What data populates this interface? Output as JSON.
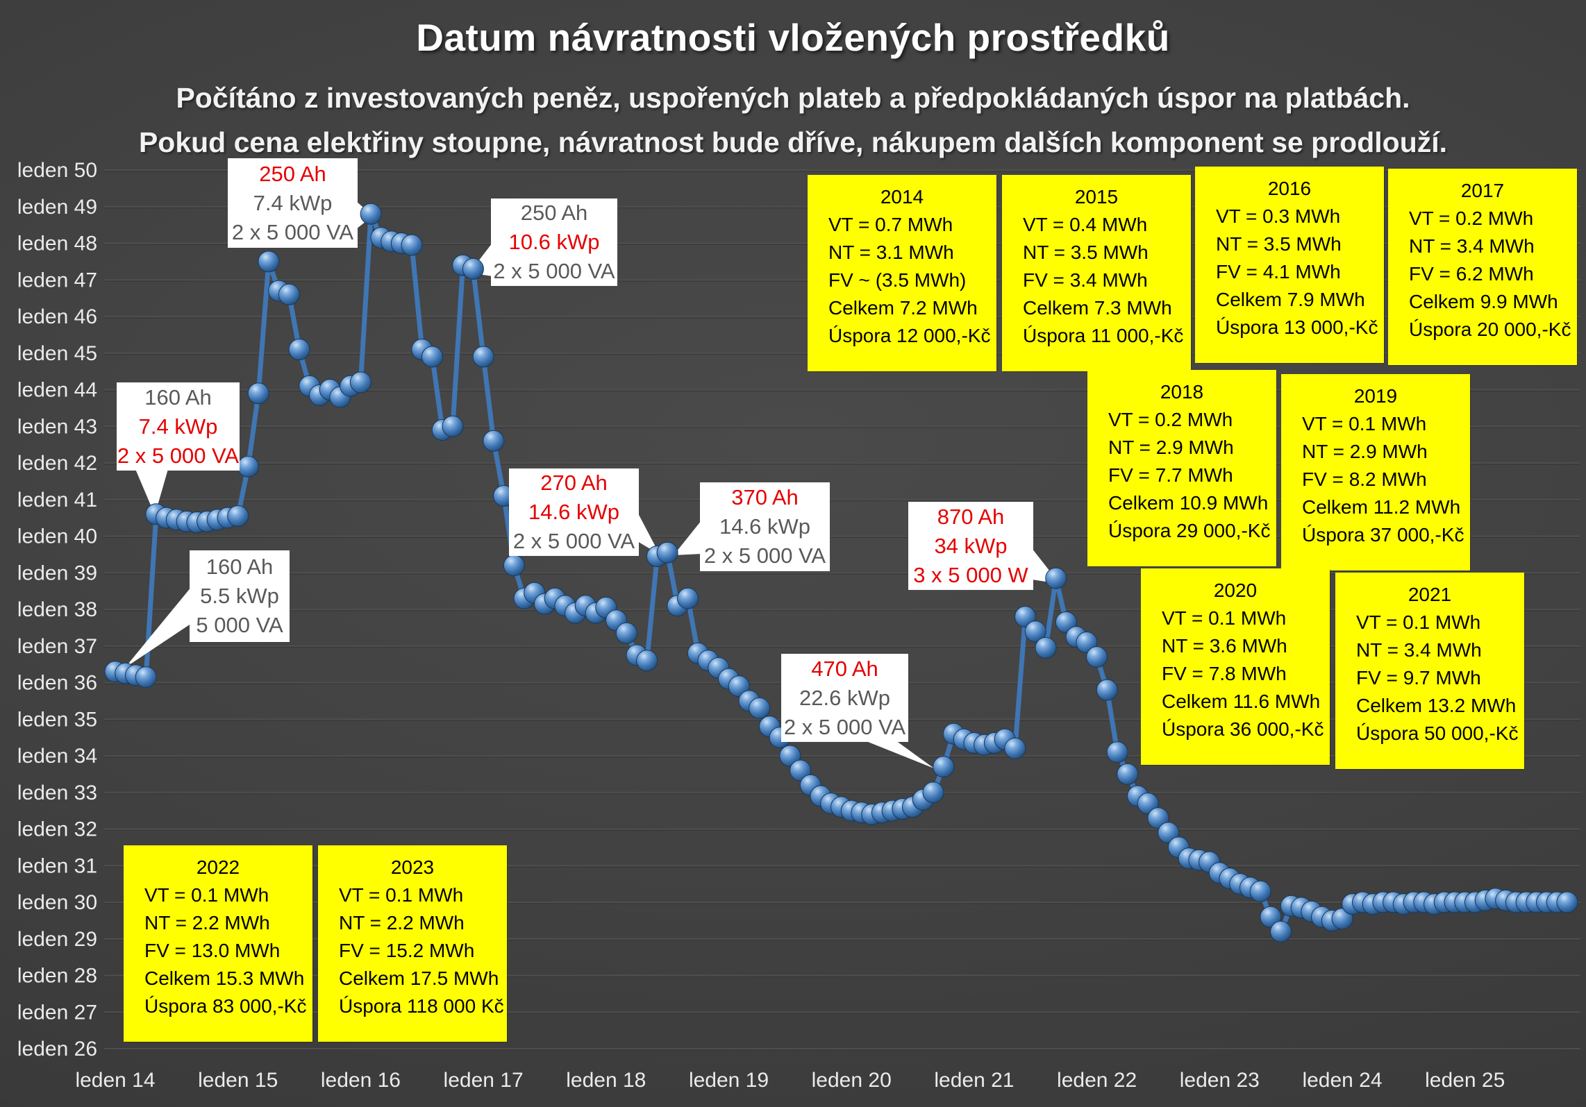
{
  "title": "Datum návratnosti vložených prostředků",
  "subtitle_line1": "Počítáno z investovaných peněz, uspořených plateb a předpokládaných úspor na platbách.",
  "subtitle_line2": "Pokud cena elektřiny stoupne, návratnost bude dříve, nákupem dalších komponent se prodlouží.",
  "colors": {
    "background": "#3f3f3f",
    "gridline": "#4e4e4e",
    "gridline_shadow": "#343434",
    "axis_label": "#ebebeb",
    "line": "#3f76b4",
    "marker_dark": "#1d4976",
    "marker_light": "#cfe3f7",
    "year_box_bg": "#ffff00",
    "year_box_text": "#000000",
    "callout_bg": "#ffffff",
    "callout_red": "#e60000",
    "callout_gray": "#595959"
  },
  "chart_data": {
    "type": "line",
    "title": "Datum návratnosti vložených prostředků",
    "xlabel": "",
    "ylabel": "",
    "grid": true,
    "legend": "none",
    "x_tick_labels": [
      "leden 14",
      "leden 15",
      "leden 16",
      "leden 17",
      "leden 18",
      "leden 19",
      "leden 20",
      "leden 21",
      "leden 22",
      "leden 23",
      "leden 24",
      "leden 25"
    ],
    "y_tick_labels": [
      "leden 50",
      "leden 49",
      "leden 48",
      "leden 47",
      "leden 46",
      "leden 45",
      "leden 44",
      "leden 43",
      "leden 42",
      "leden 41",
      "leden 40",
      "leden 39",
      "leden 38",
      "leden 37",
      "leden 36",
      "leden 35",
      "leden 34",
      "leden 33",
      "leden 32",
      "leden 31",
      "leden 30",
      "leden 29",
      "leden 28",
      "leden 27",
      "leden 26"
    ],
    "y_axis": {
      "min": 26,
      "max": 50,
      "unit": "leden (rok)"
    },
    "x_axis": {
      "min": 2014,
      "max": 2025,
      "unit": "leden (rok)"
    },
    "series": [
      {
        "name": "datum návratnosti",
        "points": [
          [
            "2014-01",
            36.3
          ],
          [
            "2014-02",
            36.25
          ],
          [
            "2014-03",
            36.2
          ],
          [
            "2014-04",
            36.15
          ],
          [
            "2014-05",
            40.6
          ],
          [
            "2014-06",
            40.5
          ],
          [
            "2014-07",
            40.45
          ],
          [
            "2014-08",
            40.4
          ],
          [
            "2014-09",
            40.38
          ],
          [
            "2014-10",
            40.4
          ],
          [
            "2014-11",
            40.45
          ],
          [
            "2014-12",
            40.5
          ],
          [
            "2015-01",
            40.55
          ],
          [
            "2015-02",
            41.9
          ],
          [
            "2015-03",
            43.9
          ],
          [
            "2015-04",
            47.5
          ],
          [
            "2015-05",
            46.7
          ],
          [
            "2015-06",
            46.6
          ],
          [
            "2015-07",
            45.1
          ],
          [
            "2015-08",
            44.1
          ],
          [
            "2015-09",
            43.85
          ],
          [
            "2015-10",
            44.0
          ],
          [
            "2015-11",
            43.8
          ],
          [
            "2015-12",
            44.1
          ],
          [
            "2016-01",
            44.2
          ],
          [
            "2016-02",
            48.8
          ],
          [
            "2016-03",
            48.15
          ],
          [
            "2016-04",
            48.05
          ],
          [
            "2016-05",
            48.0
          ],
          [
            "2016-06",
            47.95
          ],
          [
            "2016-07",
            45.1
          ],
          [
            "2016-08",
            44.9
          ],
          [
            "2016-09",
            42.9
          ],
          [
            "2016-10",
            43.0
          ],
          [
            "2016-11",
            47.4
          ],
          [
            "2016-12",
            47.3
          ],
          [
            "2017-01",
            44.9
          ],
          [
            "2017-02",
            42.6
          ],
          [
            "2017-03",
            41.1
          ],
          [
            "2017-04",
            39.2
          ],
          [
            "2017-05",
            38.3
          ],
          [
            "2017-06",
            38.45
          ],
          [
            "2017-07",
            38.15
          ],
          [
            "2017-08",
            38.3
          ],
          [
            "2017-09",
            38.1
          ],
          [
            "2017-10",
            37.9
          ],
          [
            "2017-11",
            38.1
          ],
          [
            "2017-12",
            37.9
          ],
          [
            "2018-01",
            38.05
          ],
          [
            "2018-02",
            37.7
          ],
          [
            "2018-03",
            37.35
          ],
          [
            "2018-04",
            36.75
          ],
          [
            "2018-05",
            36.6
          ],
          [
            "2018-06",
            39.45
          ],
          [
            "2018-07",
            39.55
          ],
          [
            "2018-08",
            38.1
          ],
          [
            "2018-09",
            38.3
          ],
          [
            "2018-10",
            36.8
          ],
          [
            "2018-11",
            36.6
          ],
          [
            "2018-12",
            36.4
          ],
          [
            "2019-01",
            36.1
          ],
          [
            "2019-02",
            35.9
          ],
          [
            "2019-03",
            35.5
          ],
          [
            "2019-04",
            35.3
          ],
          [
            "2019-05",
            34.8
          ],
          [
            "2019-06",
            34.5
          ],
          [
            "2019-07",
            34.0
          ],
          [
            "2019-08",
            33.6
          ],
          [
            "2019-09",
            33.2
          ],
          [
            "2019-10",
            32.9
          ],
          [
            "2019-11",
            32.7
          ],
          [
            "2019-12",
            32.6
          ],
          [
            "2020-01",
            32.5
          ],
          [
            "2020-02",
            32.45
          ],
          [
            "2020-03",
            32.4
          ],
          [
            "2020-04",
            32.45
          ],
          [
            "2020-05",
            32.5
          ],
          [
            "2020-06",
            32.55
          ],
          [
            "2020-07",
            32.6
          ],
          [
            "2020-08",
            32.8
          ],
          [
            "2020-09",
            33.0
          ],
          [
            "2020-10",
            33.7
          ],
          [
            "2020-11",
            34.6
          ],
          [
            "2020-12",
            34.45
          ],
          [
            "2021-01",
            34.35
          ],
          [
            "2021-02",
            34.3
          ],
          [
            "2021-03",
            34.35
          ],
          [
            "2021-04",
            34.45
          ],
          [
            "2021-05",
            34.2
          ],
          [
            "2021-06",
            37.8
          ],
          [
            "2021-07",
            37.4
          ],
          [
            "2021-08",
            36.95
          ],
          [
            "2021-09",
            38.85
          ],
          [
            "2021-10",
            37.65
          ],
          [
            "2021-11",
            37.25
          ],
          [
            "2021-12",
            37.1
          ],
          [
            "2022-01",
            36.7
          ],
          [
            "2022-02",
            35.8
          ],
          [
            "2022-03",
            34.1
          ],
          [
            "2022-04",
            33.5
          ],
          [
            "2022-05",
            32.9
          ],
          [
            "2022-06",
            32.7
          ],
          [
            "2022-07",
            32.3
          ],
          [
            "2022-08",
            31.9
          ],
          [
            "2022-09",
            31.5
          ],
          [
            "2022-10",
            31.2
          ],
          [
            "2022-11",
            31.15
          ],
          [
            "2022-12",
            31.1
          ],
          [
            "2023-01",
            30.8
          ],
          [
            "2023-02",
            30.65
          ],
          [
            "2023-03",
            30.5
          ],
          [
            "2023-04",
            30.4
          ],
          [
            "2023-05",
            30.3
          ],
          [
            "2023-06",
            29.6
          ],
          [
            "2023-07",
            29.2
          ],
          [
            "2023-08",
            29.9
          ],
          [
            "2023-09",
            29.85
          ],
          [
            "2023-10",
            29.75
          ],
          [
            "2023-11",
            29.6
          ],
          [
            "2023-12",
            29.5
          ],
          [
            "2024-01",
            29.55
          ],
          [
            "2024-02",
            29.95
          ],
          [
            "2024-03",
            30.0
          ],
          [
            "2024-04",
            29.95
          ],
          [
            "2024-05",
            30.0
          ],
          [
            "2024-06",
            30.0
          ],
          [
            "2024-07",
            29.95
          ],
          [
            "2024-08",
            30.0
          ],
          [
            "2024-09",
            30.0
          ],
          [
            "2024-10",
            29.95
          ],
          [
            "2024-11",
            30.0
          ],
          [
            "2024-12",
            30.0
          ],
          [
            "2025-01",
            30.0
          ],
          [
            "2025-02",
            30.0
          ],
          [
            "2025-03",
            30.05
          ],
          [
            "2025-04",
            30.1
          ],
          [
            "2025-05",
            30.05
          ],
          [
            "2025-06",
            30.0
          ],
          [
            "2025-07",
            30.0
          ],
          [
            "2025-08",
            30.0
          ],
          [
            "2025-09",
            30.0
          ],
          [
            "2025-10",
            30.0
          ],
          [
            "2025-11",
            30.0
          ]
        ]
      }
    ],
    "year_boxes": [
      {
        "year": "2014",
        "lines": [
          "VT = 0.7 MWh",
          "NT = 3.1 MWh",
          "FV ~ (3.5 MWh)",
          "Celkem 7.2 MWh",
          "Úspora 12 000,-Kč"
        ]
      },
      {
        "year": "2015",
        "lines": [
          "VT = 0.4 MWh",
          "NT = 3.5 MWh",
          "FV = 3.4 MWh",
          "Celkem 7.3 MWh",
          "Úspora 11 000,-Kč"
        ]
      },
      {
        "year": "2016",
        "lines": [
          "VT = 0.3 MWh",
          "NT = 3.5 MWh",
          "FV = 4.1 MWh",
          "Celkem 7.9 MWh",
          "Úspora 13 000,-Kč"
        ]
      },
      {
        "year": "2017",
        "lines": [
          "VT = 0.2 MWh",
          "NT = 3.4 MWh",
          "FV = 6.2 MWh",
          "Celkem 9.9 MWh",
          "Úspora 20 000,-Kč"
        ]
      },
      {
        "year": "2018",
        "lines": [
          "VT = 0.2 MWh",
          "NT = 2.9 MWh",
          "FV = 7.7 MWh",
          "Celkem 10.9 MWh",
          "Úspora 29 000,-Kč"
        ]
      },
      {
        "year": "2019",
        "lines": [
          "VT = 0.1 MWh",
          "NT = 2.9 MWh",
          "FV = 8.2 MWh",
          "Celkem 11.2 MWh",
          "Úspora 37 000,-Kč"
        ]
      },
      {
        "year": "2020",
        "lines": [
          "VT = 0.1 MWh",
          "NT = 3.6 MWh",
          "FV = 7.8 MWh",
          "Celkem 11.6 MWh",
          "Úspora 36 000,-Kč"
        ]
      },
      {
        "year": "2021",
        "lines": [
          "VT = 0.1 MWh",
          "NT = 3.4 MWh",
          "FV = 9.7 MWh",
          "Celkem 13.2 MWh",
          "Úspora 50 000,-Kč"
        ]
      },
      {
        "year": "2022",
        "lines": [
          "VT = 0.1 MWh",
          "NT = 2.2 MWh",
          "FV = 13.0 MWh",
          "Celkem 15.3 MWh",
          "Úspora 83 000,-Kč"
        ]
      },
      {
        "year": "2023",
        "lines": [
          "VT = 0.1 MWh",
          "NT = 2.2 MWh",
          "FV = 15.2 MWh",
          "Celkem 17.5 MWh",
          "Úspora 118 000 Kč"
        ]
      }
    ],
    "callouts": [
      {
        "name": "250ah-74kwp",
        "lines": [
          {
            "text": "250 Ah",
            "color": "red"
          },
          {
            "text": "7.4 kWp",
            "color": "gray"
          },
          {
            "text": "2 x 5 000 VA",
            "color": "gray"
          }
        ]
      },
      {
        "name": "250ah-106kwp",
        "lines": [
          {
            "text": "250 Ah",
            "color": "gray"
          },
          {
            "text": "10.6 kWp",
            "color": "red"
          },
          {
            "text": "2 x 5 000 VA",
            "color": "gray"
          }
        ]
      },
      {
        "name": "160ah-74kwp",
        "lines": [
          {
            "text": "160 Ah",
            "color": "gray"
          },
          {
            "text": "7.4 kWp",
            "color": "red"
          },
          {
            "text": "2 x 5 000 VA",
            "color": "red"
          }
        ]
      },
      {
        "name": "160ah-55kwp",
        "lines": [
          {
            "text": "160 Ah",
            "color": "gray"
          },
          {
            "text": "5.5 kWp",
            "color": "gray"
          },
          {
            "text": "5 000 VA",
            "color": "gray"
          }
        ]
      },
      {
        "name": "270ah-146kwp",
        "lines": [
          {
            "text": "270 Ah",
            "color": "red"
          },
          {
            "text": "14.6 kWp",
            "color": "red"
          },
          {
            "text": "2 x 5 000 VA",
            "color": "gray"
          }
        ]
      },
      {
        "name": "370ah-146kwp",
        "lines": [
          {
            "text": "370 Ah",
            "color": "red"
          },
          {
            "text": "14.6 kWp",
            "color": "gray"
          },
          {
            "text": "2 x 5 000 VA",
            "color": "gray"
          }
        ]
      },
      {
        "name": "870ah-34kwp",
        "lines": [
          {
            "text": "870 Ah",
            "color": "red"
          },
          {
            "text": "34 kWp",
            "color": "red"
          },
          {
            "text": "3 x 5 000 W",
            "color": "red"
          }
        ]
      },
      {
        "name": "470ah-226kwp",
        "lines": [
          {
            "text": "470 Ah",
            "color": "red"
          },
          {
            "text": "22.6 kWp",
            "color": "gray"
          },
          {
            "text": "2 x 5 000 VA",
            "color": "gray"
          }
        ]
      }
    ]
  }
}
